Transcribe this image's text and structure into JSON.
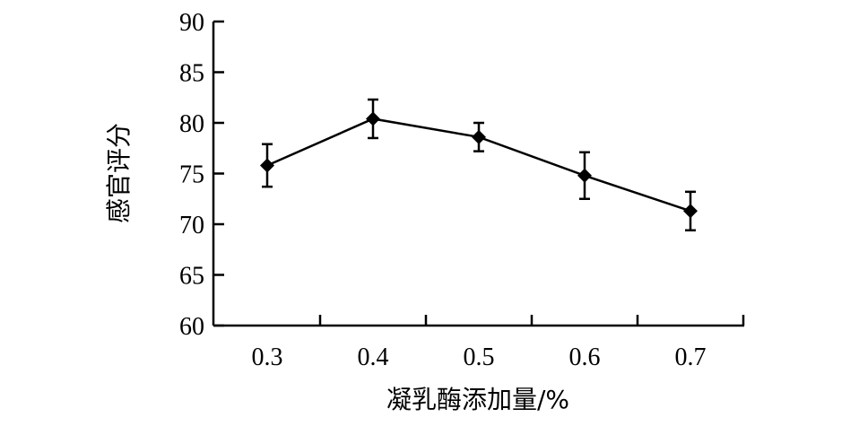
{
  "chart_data": {
    "type": "line",
    "title": "",
    "xlabel": "凝乳酶添加量/%",
    "ylabel": "感官评分",
    "x": [
      0.3,
      0.4,
      0.5,
      0.6,
      0.7
    ],
    "x_tick_labels": [
      "0.3",
      "0.4",
      "0.5",
      "0.6",
      "0.7"
    ],
    "y_tick_labels": [
      "60",
      "65",
      "70",
      "75",
      "80",
      "85",
      "90"
    ],
    "ylim": [
      60,
      90
    ],
    "series": [
      {
        "values": [
          75.8,
          80.4,
          78.6,
          74.8,
          71.3
        ],
        "error": [
          2.1,
          1.9,
          1.4,
          2.3,
          1.9
        ]
      }
    ],
    "grid": false,
    "color": "#000000"
  }
}
